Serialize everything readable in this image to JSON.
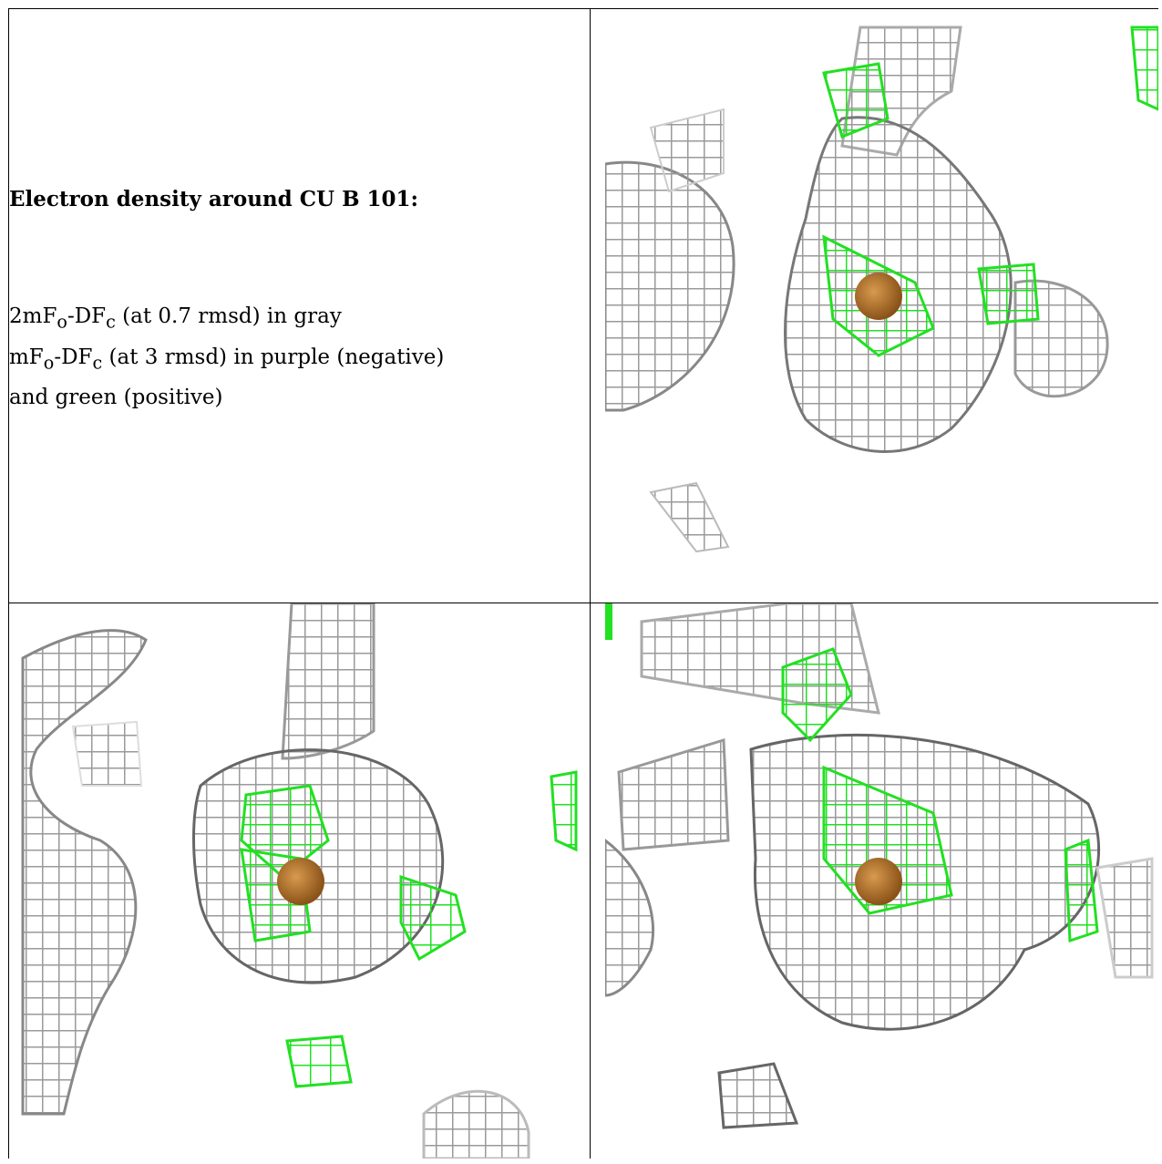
{
  "caption": {
    "title": "Electron density around CU B 101:",
    "line1_a": "2mF",
    "line1_sub1": "o",
    "line1_b": "-DF",
    "line1_sub2": "c",
    "line1_c": " (at 0.7 rmsd) in gray",
    "line2_a": "mF",
    "line2_sub1": "o",
    "line2_b": "-DF",
    "line2_sub2": "c",
    "line2_c": " (at 3 rmsd) in purple (negative)",
    "line3": "and green (positive)"
  },
  "colors": {
    "mesh_gray": "#9a9a9a",
    "mesh_dark": "#555555",
    "mesh_light": "#c8c8c8",
    "mesh_green": "#22e022",
    "atom_copper": "#b8732a"
  },
  "panels": [
    {
      "name": "view-top-right",
      "atom_label": ""
    },
    {
      "name": "view-bottom-left",
      "atom_label": ""
    },
    {
      "name": "view-bottom-right",
      "atom_label": ""
    }
  ]
}
